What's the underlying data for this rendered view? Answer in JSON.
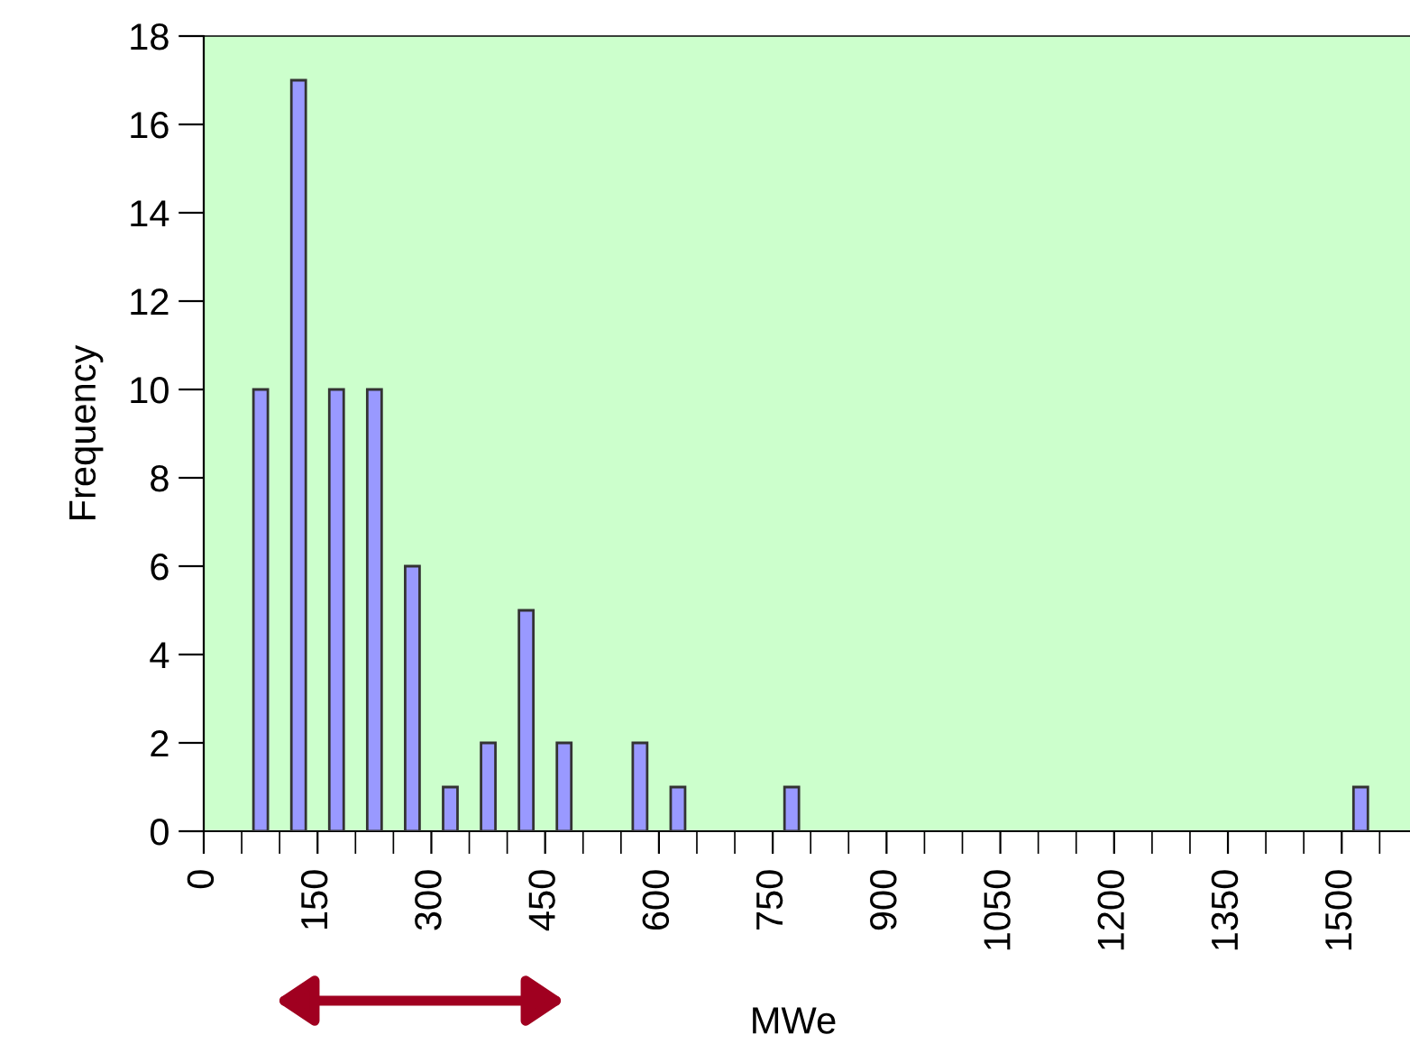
{
  "chart_data": {
    "type": "bar",
    "xlabel": "MWe",
    "ylabel": "Frequency",
    "x": [
      75,
      125,
      175,
      225,
      275,
      325,
      375,
      425,
      475,
      575,
      625,
      775,
      1525
    ],
    "values": [
      10,
      17,
      10,
      10,
      6,
      1,
      2,
      5,
      2,
      2,
      1,
      1,
      1
    ],
    "color": "#9999ff",
    "xlim": [
      0,
      1590
    ],
    "xticks": [
      0,
      {
        "value": 50,
        "label": null
      },
      {
        "value": 100,
        "label": null
      },
      150,
      {
        "value": 200,
        "label": null
      },
      {
        "value": 250,
        "label": null
      },
      300,
      {
        "value": 350,
        "label": null
      },
      {
        "value": 400,
        "label": null
      },
      450,
      {
        "value": 500,
        "label": null
      },
      {
        "value": 550,
        "label": null
      },
      600,
      {
        "value": 650,
        "label": null
      },
      {
        "value": 700,
        "label": null
      },
      750,
      {
        "value": 800,
        "label": null
      },
      {
        "value": 850,
        "label": null
      },
      900,
      {
        "value": 950,
        "label": null
      },
      {
        "value": 1000,
        "label": null
      },
      1050,
      {
        "value": 1100,
        "label": null
      },
      {
        "value": 1150,
        "label": null
      },
      1200,
      {
        "value": 1250,
        "label": null
      },
      {
        "value": 1300,
        "label": null
      },
      1350,
      {
        "value": 1400,
        "label": null
      },
      {
        "value": 1450,
        "label": null
      },
      1500,
      {
        "value": 1550,
        "label": null
      }
    ],
    "ylim": [
      0,
      18
    ],
    "yticks": [
      0,
      2,
      4,
      6,
      8,
      10,
      12,
      14,
      16,
      18
    ],
    "grid": false,
    "legend": false
  }
}
